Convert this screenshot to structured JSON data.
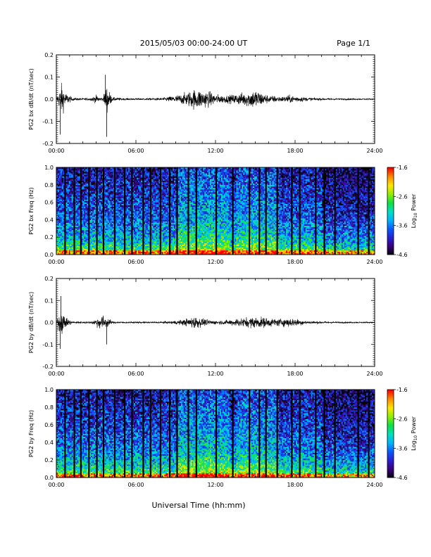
{
  "header": {
    "title": "2015/05/03  00:00-24:00 UT",
    "page": "Page 1/1"
  },
  "footer": {
    "xlabel": "Universal Time (hh:mm)"
  },
  "colors": {
    "trace": "#000000",
    "spectrogram_scale": [
      "#000000",
      "#3a007a",
      "#2a1fd0",
      "#0a58ff",
      "#00b4ff",
      "#00e0c0",
      "#10e040",
      "#8ef000",
      "#ffe800",
      "#ff8c00",
      "#ff0000"
    ]
  },
  "chart_data": [
    {
      "type": "line",
      "ylabel": "PG2 bx dB/dt (nT/sec)",
      "ylim": [
        -0.2,
        0.2
      ],
      "yticks": [
        -0.2,
        -0.1,
        0.0,
        0.1,
        0.2
      ],
      "ytick_labels": [
        "-0.2",
        "-0.1",
        "0.0",
        "0.1",
        "0.2"
      ],
      "xlim": [
        "00:00",
        "24:00"
      ],
      "xticks": [
        "00:00",
        "06:00",
        "12:00",
        "18:00",
        "24:00"
      ],
      "series": [
        {
          "x_hours": [
            0,
            0.4,
            0.7,
            1.2,
            2.0,
            2.6,
            3.0,
            3.5,
            3.8,
            4.2,
            5.0,
            6.0,
            7.0,
            8.0,
            8.5,
            9.0,
            9.5,
            10.0,
            10.5,
            11.0,
            11.5,
            12.0,
            12.5,
            13.0,
            13.5,
            14.0,
            14.5,
            15.0,
            15.5,
            16.0,
            16.5,
            17.0,
            17.5,
            18.0,
            18.5,
            19.0,
            20.0,
            21.0,
            22.0,
            23.0,
            24.0
          ],
          "amplitude": [
            0.01,
            0.12,
            0.05,
            0.012,
            0.008,
            0.012,
            0.03,
            0.01,
            0.11,
            0.015,
            0.008,
            0.007,
            0.008,
            0.01,
            0.02,
            0.03,
            0.04,
            0.06,
            0.08,
            0.07,
            0.06,
            0.04,
            0.03,
            0.03,
            0.04,
            0.05,
            0.06,
            0.08,
            0.05,
            0.03,
            0.025,
            0.02,
            0.03,
            0.025,
            0.02,
            0.012,
            0.008,
            0.006,
            0.006,
            0.005,
            0.004
          ]
        }
      ],
      "spikes": [
        {
          "x_hours": 0.3,
          "y": -0.16
        },
        {
          "x_hours": 3.8,
          "y": -0.17
        },
        {
          "x_hours": 3.7,
          "y": 0.11
        }
      ]
    },
    {
      "type": "heatmap",
      "ylabel": "PG2 bx Freq (Hz)",
      "ylim": [
        0.0,
        1.0
      ],
      "yticks": [
        0.0,
        0.2,
        0.4,
        0.6,
        0.8,
        1.0
      ],
      "ytick_labels": [
        "0.0",
        "0.2",
        "0.4",
        "0.6",
        "0.8",
        "1.0"
      ],
      "xlim": [
        "00:00",
        "24:00"
      ],
      "xticks": [
        "00:00",
        "06:00",
        "12:00",
        "18:00",
        "24:00"
      ],
      "colorbar": {
        "label": "Log10 Power",
        "label_base": "Log",
        "label_sub": "10",
        "label_rest": " Power",
        "range": [
          -4.6,
          -1.6
        ],
        "ticks": [
          "-1.6",
          "-2.6",
          "-3.6",
          "-4.6"
        ]
      },
      "data_gaps_hours": [
        0.65,
        1.35,
        1.85,
        2.45,
        3.05,
        3.55,
        4.4,
        5.15,
        5.7,
        6.55,
        7.1,
        7.85,
        8.55,
        9.1,
        9.95,
        10.55,
        12.05,
        13.3,
        14.55,
        15.3,
        15.8,
        16.65,
        17.75,
        18.35,
        19.55,
        20.2,
        21.0,
        22.75,
        23.55
      ]
    },
    {
      "type": "line",
      "ylabel": "PG2 by dB/dt (nT/sec)",
      "ylim": [
        -0.2,
        0.2
      ],
      "yticks": [
        -0.2,
        -0.1,
        0.0,
        0.1,
        0.2
      ],
      "ytick_labels": [
        "-0.2",
        "-0.1",
        "0.0",
        "0.1",
        "0.2"
      ],
      "xlim": [
        "00:00",
        "24:00"
      ],
      "xticks": [
        "00:00",
        "06:00",
        "12:00",
        "18:00",
        "24:00"
      ],
      "series": [
        {
          "x_hours": [
            0,
            0.3,
            0.7,
            1.2,
            2.0,
            2.6,
            3.0,
            3.4,
            3.8,
            4.2,
            5.0,
            6.0,
            7.0,
            8.0,
            8.5,
            9.0,
            9.5,
            10.0,
            10.5,
            11.0,
            11.5,
            12.0,
            12.5,
            13.0,
            13.5,
            14.0,
            14.5,
            15.0,
            15.5,
            16.0,
            16.5,
            17.0,
            17.5,
            18.0,
            18.5,
            19.0,
            20.0,
            21.0,
            22.0,
            23.0,
            24.0
          ],
          "amplitude": [
            0.01,
            0.1,
            0.04,
            0.01,
            0.007,
            0.008,
            0.03,
            0.06,
            0.04,
            0.01,
            0.006,
            0.006,
            0.006,
            0.008,
            0.01,
            0.015,
            0.02,
            0.035,
            0.05,
            0.03,
            0.02,
            0.015,
            0.015,
            0.02,
            0.03,
            0.035,
            0.04,
            0.045,
            0.04,
            0.035,
            0.03,
            0.03,
            0.035,
            0.03,
            0.02,
            0.012,
            0.008,
            0.006,
            0.005,
            0.005,
            0.004
          ]
        }
      ],
      "spikes": [
        {
          "x_hours": 0.3,
          "y": -0.12
        },
        {
          "x_hours": 3.8,
          "y": -0.1
        },
        {
          "x_hours": 0.35,
          "y": 0.12
        }
      ]
    },
    {
      "type": "heatmap",
      "ylabel": "PG2 by Freq (Hz)",
      "ylim": [
        0.0,
        1.0
      ],
      "yticks": [
        0.0,
        0.2,
        0.4,
        0.6,
        0.8,
        1.0
      ],
      "ytick_labels": [
        "0.0",
        "0.2",
        "0.4",
        "0.6",
        "0.8",
        "1.0"
      ],
      "xlim": [
        "00:00",
        "24:00"
      ],
      "xticks": [
        "00:00",
        "06:00",
        "12:00",
        "18:00",
        "24:00"
      ],
      "colorbar": {
        "label": "Log10 Power",
        "label_base": "Log",
        "label_sub": "10",
        "label_rest": " Power",
        "range": [
          -4.6,
          -1.6
        ],
        "ticks": [
          "-1.6",
          "-2.6",
          "-3.6",
          "-4.6"
        ]
      },
      "data_gaps_hours": [
        0.65,
        1.35,
        1.85,
        2.45,
        3.05,
        3.55,
        4.4,
        5.15,
        5.7,
        6.55,
        7.1,
        7.85,
        8.55,
        9.1,
        9.95,
        10.55,
        12.05,
        13.3,
        14.55,
        15.3,
        15.8,
        16.65,
        17.75,
        18.35,
        19.55,
        20.2,
        21.0,
        22.75,
        23.55
      ]
    }
  ]
}
